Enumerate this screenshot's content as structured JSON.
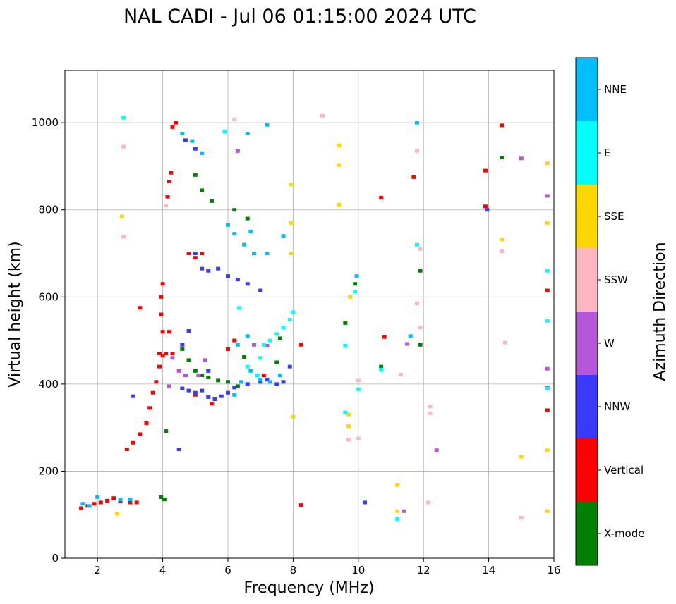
{
  "chart_data": {
    "type": "scatter",
    "title": "NAL CADI - Jul 06 01:15:00 2024 UTC",
    "xlabel": "Frequency (MHz)",
    "ylabel": "Virtual height (km)",
    "xlim": [
      1,
      16
    ],
    "ylim": [
      0,
      1120
    ],
    "xticks": [
      2,
      4,
      6,
      8,
      10,
      12,
      14,
      16
    ],
    "yticks": [
      0,
      200,
      400,
      600,
      800,
      1000
    ],
    "grid": true,
    "colorbar": {
      "label": "Azimuth Direction",
      "categories": [
        {
          "name": "X-mode",
          "color": "#008000"
        },
        {
          "name": "Vertical",
          "color": "#ff0000"
        },
        {
          "name": "NNW",
          "color": "#3a3aff"
        },
        {
          "name": "W",
          "color": "#b557d6"
        },
        {
          "name": "SSW",
          "color": "#ffb6c1"
        },
        {
          "name": "SSE",
          "color": "#ffd700"
        },
        {
          "name": "E",
          "color": "#00ffff"
        },
        {
          "name": "NNE",
          "color": "#00bfff"
        }
      ]
    },
    "series": [
      {
        "name": "Vertical",
        "points": [
          [
            1.5,
            115
          ],
          [
            1.7,
            120
          ],
          [
            1.9,
            125
          ],
          [
            2.1,
            128
          ],
          [
            2.3,
            132
          ],
          [
            2.5,
            138
          ],
          [
            2.7,
            130
          ],
          [
            3.0,
            128
          ],
          [
            3.2,
            128
          ],
          [
            2.9,
            250
          ],
          [
            3.1,
            265
          ],
          [
            3.3,
            285
          ],
          [
            3.5,
            310
          ],
          [
            3.6,
            345
          ],
          [
            3.7,
            380
          ],
          [
            3.8,
            405
          ],
          [
            3.9,
            440
          ],
          [
            4.0,
            465
          ],
          [
            4.1,
            470
          ],
          [
            4.0,
            520
          ],
          [
            4.2,
            520
          ],
          [
            4.3,
            470
          ],
          [
            3.95,
            560
          ],
          [
            3.95,
            600
          ],
          [
            4.0,
            630
          ],
          [
            4.15,
            830
          ],
          [
            4.2,
            865
          ],
          [
            4.25,
            885
          ],
          [
            4.3,
            990
          ],
          [
            4.4,
            1000
          ],
          [
            4.8,
            700
          ],
          [
            5.0,
            690
          ],
          [
            5.2,
            700
          ],
          [
            5.5,
            355
          ],
          [
            5.0,
            375
          ],
          [
            6.0,
            480
          ],
          [
            6.2,
            500
          ],
          [
            7.1,
            420
          ],
          [
            8.25,
            490
          ],
          [
            8.25,
            122
          ],
          [
            10.7,
            828
          ],
          [
            10.8,
            508
          ],
          [
            11.7,
            875
          ],
          [
            13.9,
            890
          ],
          [
            13.9,
            808
          ],
          [
            14.4,
            994
          ],
          [
            15.8,
            615
          ],
          [
            15.8,
            340
          ],
          [
            3.3,
            575
          ],
          [
            3.9,
            470
          ]
        ]
      },
      {
        "name": "X-mode",
        "points": [
          [
            3.95,
            140
          ],
          [
            4.05,
            135
          ],
          [
            4.1,
            292
          ],
          [
            4.6,
            480
          ],
          [
            4.8,
            455
          ],
          [
            5.0,
            430
          ],
          [
            5.2,
            420
          ],
          [
            5.4,
            415
          ],
          [
            5.7,
            408
          ],
          [
            6.0,
            405
          ],
          [
            6.3,
            395
          ],
          [
            5.0,
            880
          ],
          [
            5.2,
            845
          ],
          [
            5.5,
            820
          ],
          [
            6.2,
            800
          ],
          [
            6.6,
            780
          ],
          [
            7.5,
            450
          ],
          [
            7.6,
            505
          ],
          [
            9.6,
            540
          ],
          [
            9.9,
            630
          ],
          [
            10.7,
            440
          ],
          [
            11.9,
            660
          ],
          [
            11.9,
            490
          ],
          [
            14.4,
            920
          ],
          [
            6.5,
            462
          ]
        ]
      },
      {
        "name": "NNW",
        "points": [
          [
            4.5,
            250
          ],
          [
            4.6,
            390
          ],
          [
            4.8,
            385
          ],
          [
            5.0,
            380
          ],
          [
            5.2,
            385
          ],
          [
            5.4,
            370
          ],
          [
            5.6,
            365
          ],
          [
            5.8,
            372
          ],
          [
            6.0,
            380
          ],
          [
            6.2,
            392
          ],
          [
            6.6,
            400
          ],
          [
            7.0,
            405
          ],
          [
            7.2,
            410
          ],
          [
            7.5,
            400
          ],
          [
            7.7,
            405
          ],
          [
            7.9,
            440
          ],
          [
            5.0,
            700
          ],
          [
            5.2,
            665
          ],
          [
            5.4,
            660
          ],
          [
            5.7,
            665
          ],
          [
            6.0,
            648
          ],
          [
            6.3,
            640
          ],
          [
            6.6,
            630
          ],
          [
            7.0,
            615
          ],
          [
            4.7,
            960
          ],
          [
            5.0,
            940
          ],
          [
            5.2,
            930
          ],
          [
            4.8,
            522
          ],
          [
            5.4,
            430
          ],
          [
            4.6,
            490
          ],
          [
            10.2,
            128
          ],
          [
            13.95,
            800
          ],
          [
            15.8,
            392
          ],
          [
            3.1,
            372
          ]
        ]
      },
      {
        "name": "W",
        "points": [
          [
            4.3,
            460
          ],
          [
            4.5,
            430
          ],
          [
            4.7,
            420
          ],
          [
            5.1,
            420
          ],
          [
            5.3,
            455
          ],
          [
            6.3,
            935
          ],
          [
            7.2,
            488
          ],
          [
            11.4,
            108
          ],
          [
            11.5,
            492
          ],
          [
            12.4,
            248
          ],
          [
            15.0,
            918
          ],
          [
            15.8,
            832
          ],
          [
            15.8,
            435
          ],
          [
            6.8,
            490
          ],
          [
            4.2,
            395
          ]
        ]
      },
      {
        "name": "SSW",
        "points": [
          [
            2.8,
            945
          ],
          [
            4.1,
            810
          ],
          [
            6.2,
            1008
          ],
          [
            8.9,
            1016
          ],
          [
            10.0,
            408
          ],
          [
            10.0,
            275
          ],
          [
            11.3,
            422
          ],
          [
            11.8,
            935
          ],
          [
            11.8,
            585
          ],
          [
            11.9,
            710
          ],
          [
            11.9,
            530
          ],
          [
            12.15,
            128
          ],
          [
            12.2,
            348
          ],
          [
            12.2,
            333
          ],
          [
            14.4,
            705
          ],
          [
            14.5,
            495
          ],
          [
            15.0,
            93
          ],
          [
            9.7,
            272
          ],
          [
            2.8,
            738
          ]
        ]
      },
      {
        "name": "SSE",
        "points": [
          [
            2.75,
            785
          ],
          [
            7.95,
            858
          ],
          [
            7.95,
            770
          ],
          [
            7.95,
            700
          ],
          [
            8.0,
            325
          ],
          [
            9.4,
            948
          ],
          [
            9.4,
            903
          ],
          [
            9.4,
            812
          ],
          [
            9.7,
            330
          ],
          [
            9.7,
            303
          ],
          [
            9.75,
            600
          ],
          [
            11.2,
            168
          ],
          [
            11.2,
            108
          ],
          [
            14.4,
            732
          ],
          [
            15.0,
            233
          ],
          [
            15.8,
            907
          ],
          [
            15.8,
            770
          ],
          [
            15.8,
            248
          ],
          [
            15.8,
            108
          ],
          [
            2.6,
            102
          ]
        ]
      },
      {
        "name": "E",
        "points": [
          [
            2.8,
            1012
          ],
          [
            5.9,
            980
          ],
          [
            6.6,
            440
          ],
          [
            6.9,
            420
          ],
          [
            7.0,
            460
          ],
          [
            7.1,
            490
          ],
          [
            7.3,
            500
          ],
          [
            7.5,
            515
          ],
          [
            7.7,
            530
          ],
          [
            7.9,
            548
          ],
          [
            8.0,
            565
          ],
          [
            9.6,
            335
          ],
          [
            9.6,
            488
          ],
          [
            9.9,
            612
          ],
          [
            10.0,
            388
          ],
          [
            10.7,
            433
          ],
          [
            11.2,
            90
          ],
          [
            11.8,
            720
          ],
          [
            15.8,
            660
          ],
          [
            15.8,
            545
          ],
          [
            15.8,
            390
          ],
          [
            6.35,
            575
          ]
        ]
      },
      {
        "name": "NNE",
        "points": [
          [
            1.55,
            125
          ],
          [
            1.75,
            120
          ],
          [
            2.0,
            140
          ],
          [
            2.7,
            135
          ],
          [
            3.0,
            135
          ],
          [
            4.6,
            975
          ],
          [
            4.9,
            958
          ],
          [
            5.2,
            930
          ],
          [
            6.6,
            975
          ],
          [
            7.2,
            995
          ],
          [
            6.0,
            765
          ],
          [
            6.2,
            745
          ],
          [
            6.5,
            720
          ],
          [
            6.8,
            700
          ],
          [
            7.2,
            700
          ],
          [
            7.7,
            740
          ],
          [
            6.2,
            375
          ],
          [
            6.4,
            405
          ],
          [
            6.7,
            430
          ],
          [
            7.0,
            410
          ],
          [
            7.3,
            405
          ],
          [
            7.6,
            420
          ],
          [
            6.3,
            490
          ],
          [
            6.6,
            510
          ],
          [
            9.95,
            648
          ],
          [
            11.8,
            1000
          ],
          [
            11.6,
            510
          ],
          [
            6.7,
            750
          ]
        ]
      }
    ]
  }
}
